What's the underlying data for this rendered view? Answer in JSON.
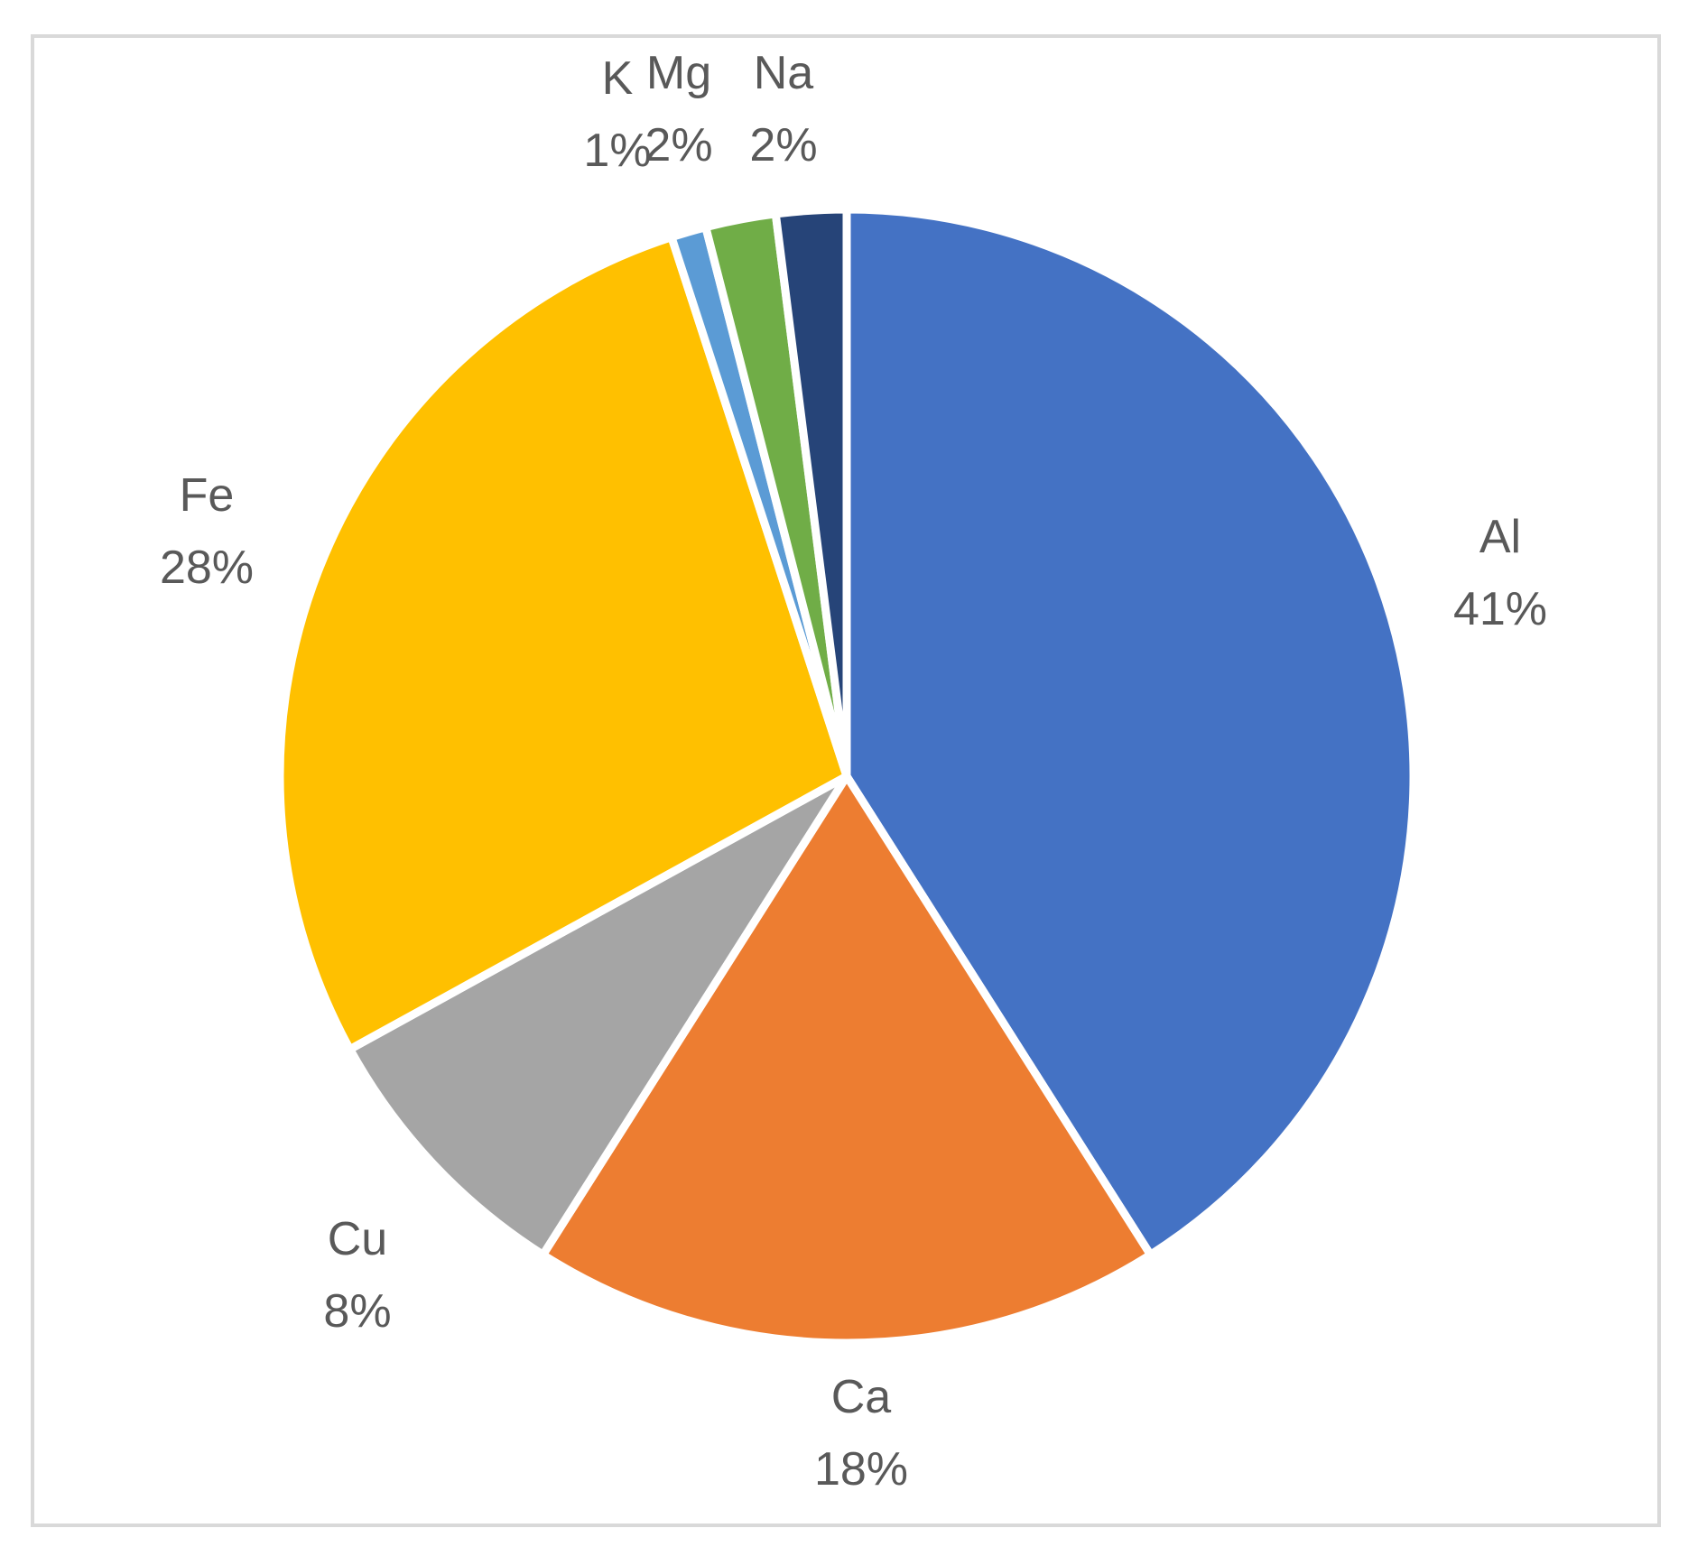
{
  "chart_data": {
    "type": "pie",
    "title": "",
    "slices": [
      {
        "label": "Al",
        "value": 41,
        "pct_label": "41%",
        "color": "#4472C4"
      },
      {
        "label": "Ca",
        "value": 18,
        "pct_label": "18%",
        "color": "#ED7D31"
      },
      {
        "label": "Cu",
        "value": 8,
        "pct_label": "8%",
        "color": "#A5A5A5"
      },
      {
        "label": "Fe",
        "value": 28,
        "pct_label": "28%",
        "color": "#FFC000"
      },
      {
        "label": "K",
        "value": 1,
        "pct_label": "1%",
        "color": "#5B9BD5"
      },
      {
        "label": "Mg",
        "value": 2,
        "pct_label": "2%",
        "color": "#70AD47"
      },
      {
        "label": "Na",
        "value": 2,
        "pct_label": "2%",
        "color": "#264478"
      }
    ],
    "start_position": "12 o'clock",
    "direction": "clockwise",
    "legend": "none",
    "data_labels": "category name and percentage"
  }
}
